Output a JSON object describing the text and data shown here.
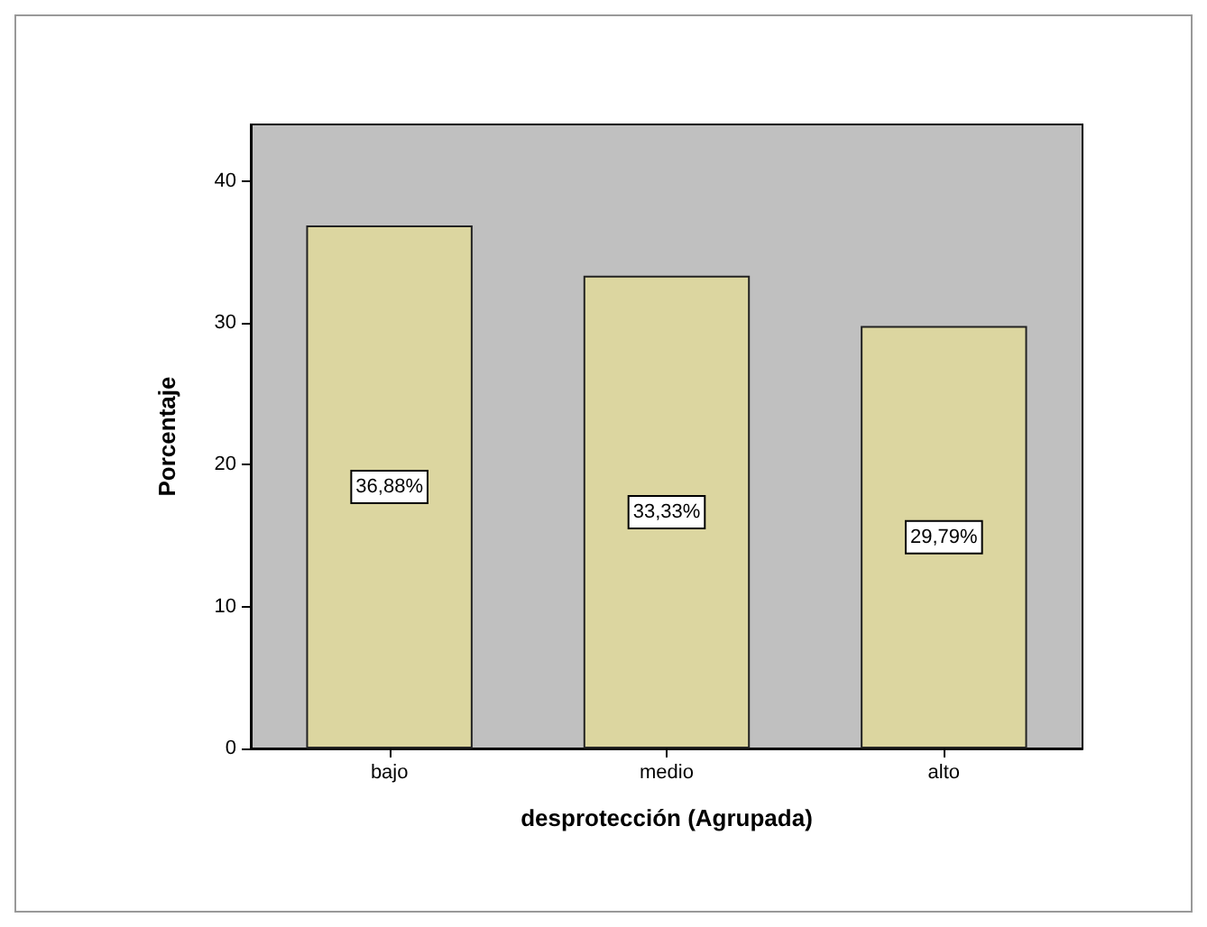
{
  "chart_data": {
    "type": "bar",
    "xlabel": "desprotección (Agrupada)",
    "ylabel": "Porcentaje",
    "categories": [
      "bajo",
      "medio",
      "alto"
    ],
    "values": [
      36.88,
      33.33,
      29.79
    ],
    "value_labels": [
      "36,88%",
      "33,33%",
      "29,79%"
    ],
    "color": "#dcd6a0",
    "ylim": [
      0,
      44
    ],
    "yticks": [
      0,
      10,
      20,
      30,
      40
    ],
    "grid": false
  }
}
